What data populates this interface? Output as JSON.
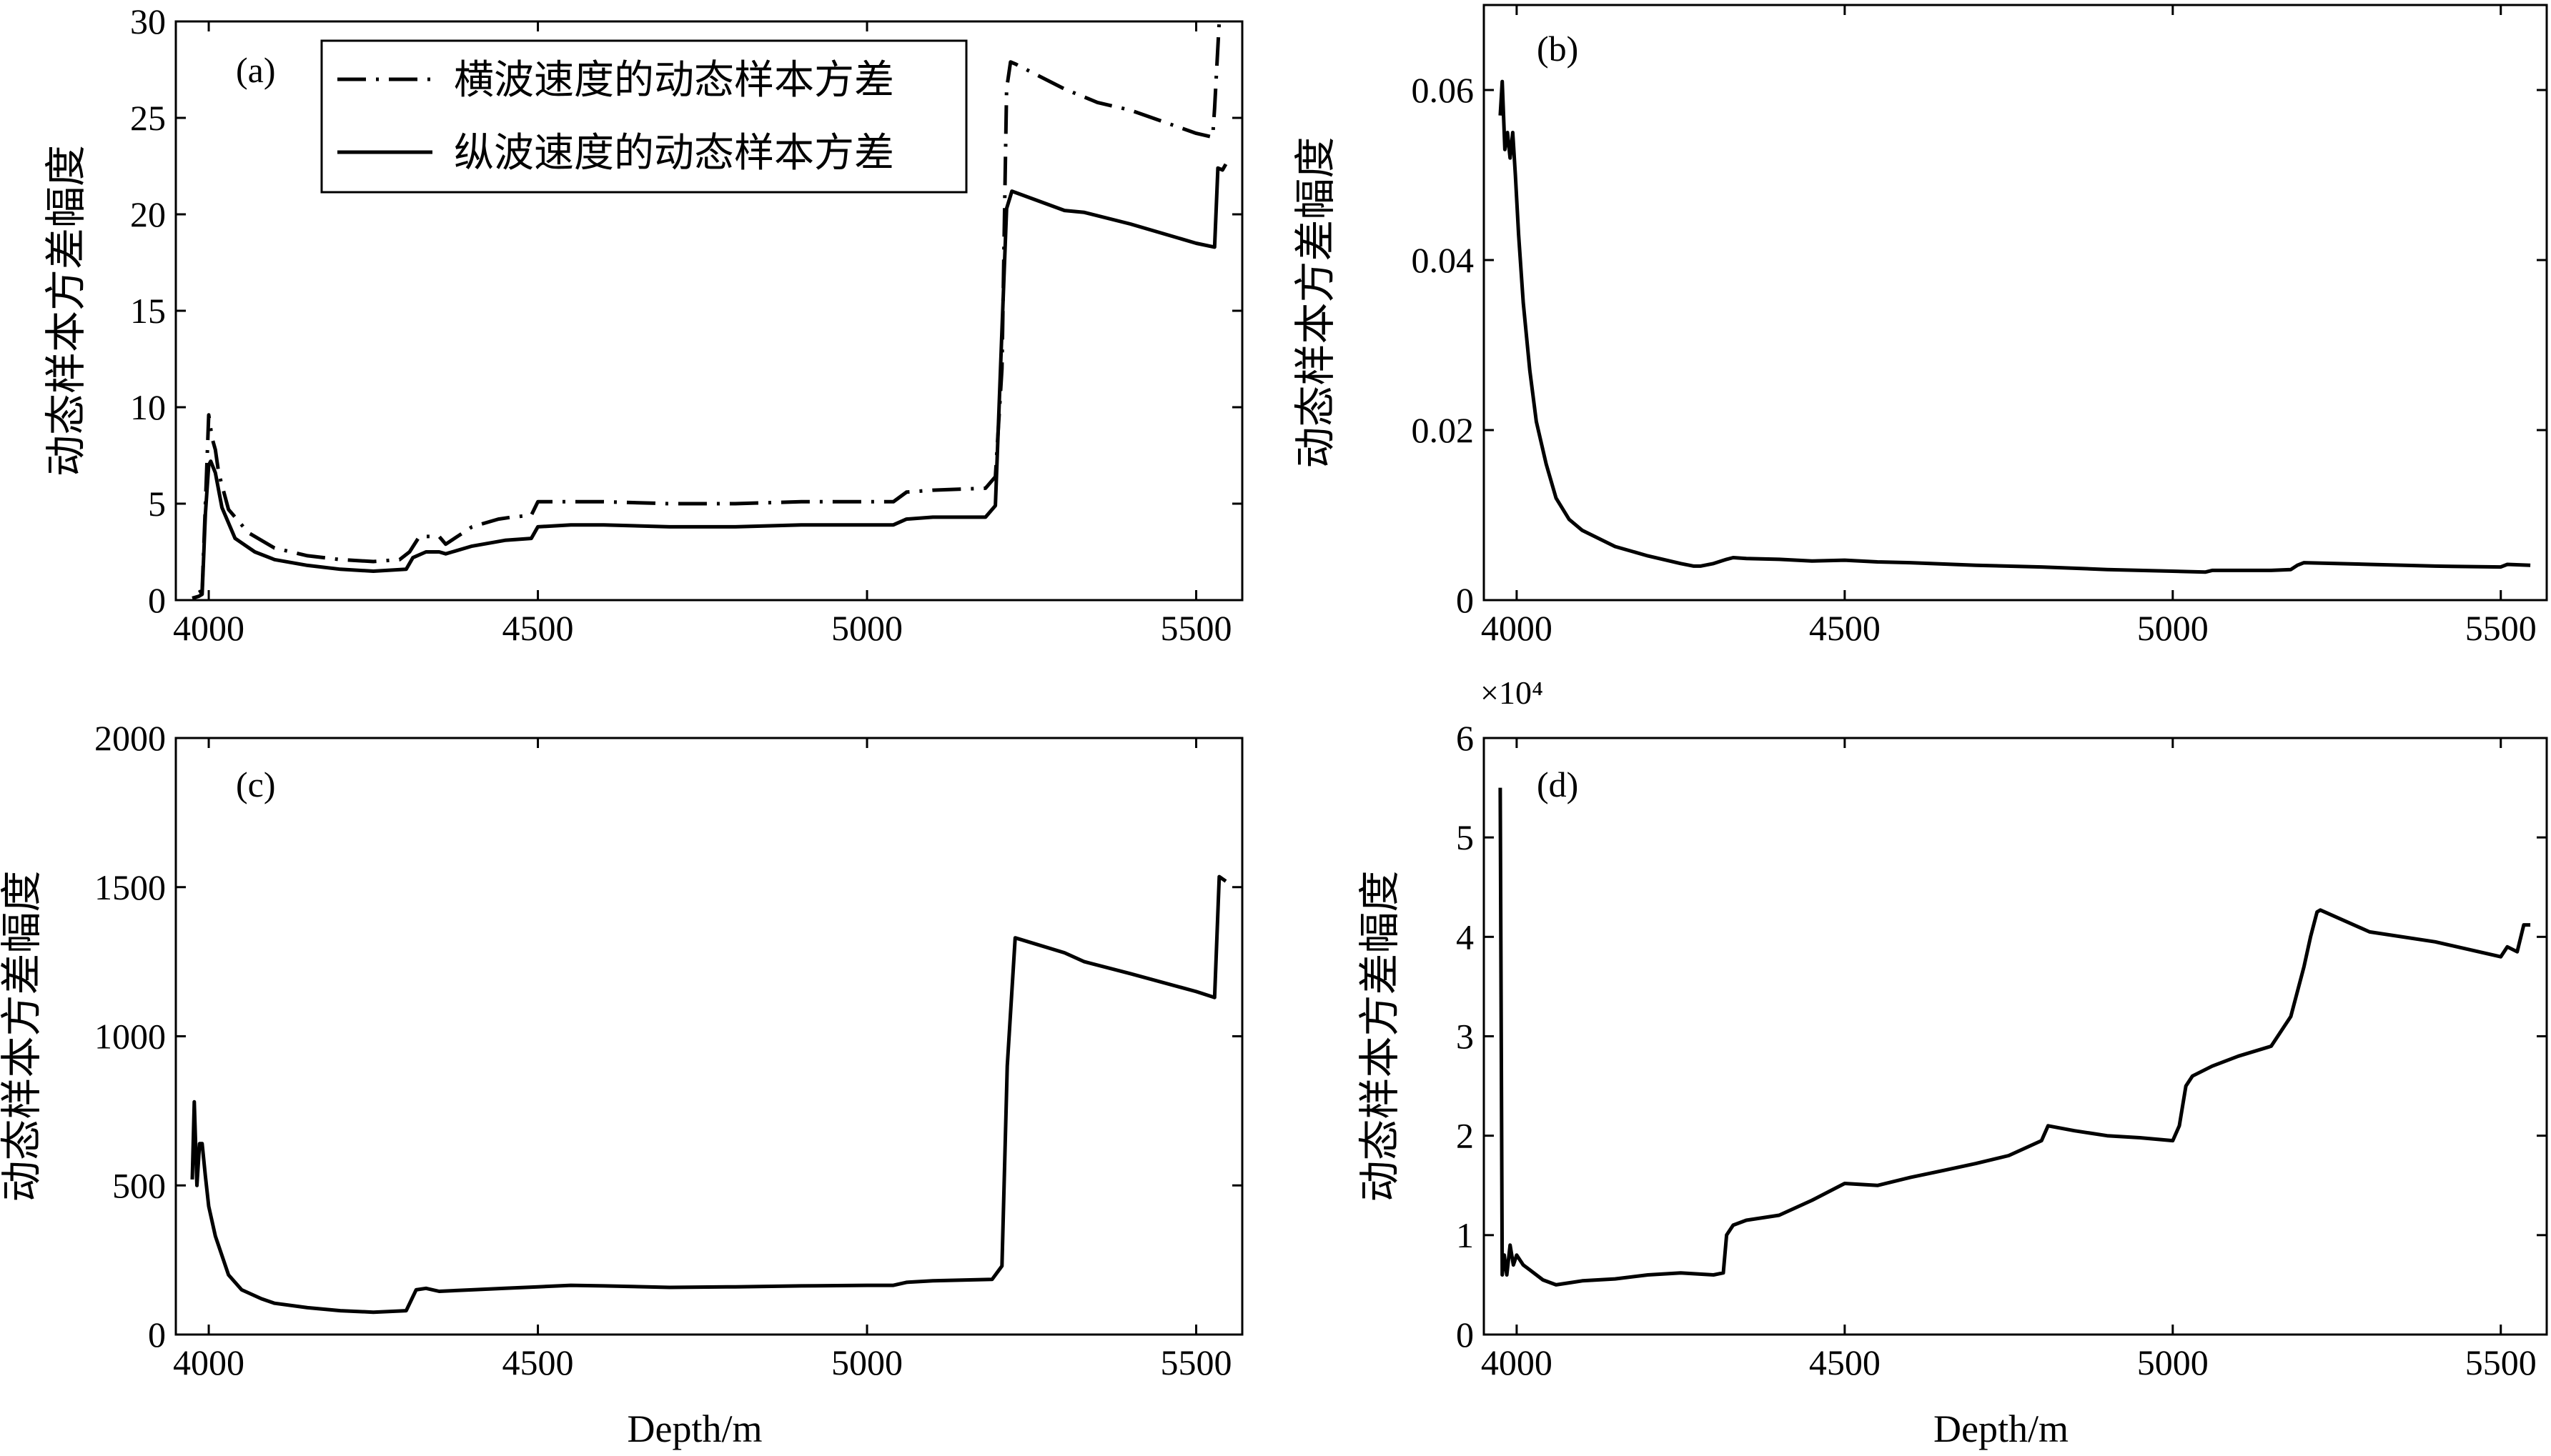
{
  "chart_data": [
    {
      "type": "line",
      "panel_label": "(a)",
      "ylabel": "动态样本方差幅度",
      "xlabel": "",
      "xlim": [
        3950,
        5570
      ],
      "ylim": [
        0,
        30
      ],
      "xticks": [
        4000,
        4500,
        5000,
        5500
      ],
      "yticks": [
        0,
        5,
        10,
        15,
        20,
        25,
        30
      ],
      "legend_position": "top-center",
      "series": [
        {
          "name": "横波速度的动态样本方差",
          "style": "dash-dot",
          "color": "#000000",
          "x": [
            3985,
            3990,
            3995,
            4000,
            4005,
            4010,
            4015,
            4030,
            4060,
            4100,
            4150,
            4200,
            4250,
            4290,
            4305,
            4320,
            4350,
            4360,
            4400,
            4440,
            4460,
            4490,
            4500,
            4550,
            4600,
            4700,
            4800,
            4900,
            5000,
            5040,
            5060,
            5100,
            5180,
            5195,
            5205,
            5212,
            5218,
            5225,
            5300,
            5350,
            5400,
            5450,
            5500,
            5525,
            5528,
            5535,
            5545
          ],
          "y": [
            0.4,
            0.5,
            5.0,
            9.6,
            8.4,
            7.8,
            6.6,
            4.7,
            3.5,
            2.7,
            2.3,
            2.1,
            2.0,
            2.1,
            2.5,
            3.3,
            3.3,
            2.9,
            3.8,
            4.2,
            4.3,
            4.4,
            5.1,
            5.1,
            5.1,
            5.0,
            5.0,
            5.1,
            5.1,
            5.1,
            5.6,
            5.7,
            5.8,
            6.4,
            12.0,
            26.5,
            27.9,
            27.8,
            26.5,
            25.8,
            25.4,
            24.8,
            24.2,
            24.0,
            25.5,
            30.0,
            30.0
          ]
        },
        {
          "name": "纵波速度的动态样本方差",
          "style": "solid",
          "color": "#000000",
          "x": [
            3975,
            3985,
            3990,
            3995,
            4000,
            4003,
            4010,
            4020,
            4040,
            4070,
            4100,
            4150,
            4200,
            4250,
            4300,
            4310,
            4330,
            4350,
            4360,
            4400,
            4450,
            4490,
            4500,
            4550,
            4600,
            4700,
            4800,
            4900,
            5000,
            5040,
            5060,
            5100,
            5180,
            5195,
            5205,
            5212,
            5220,
            5300,
            5330,
            5400,
            5450,
            5500,
            5528,
            5533,
            5540,
            5545
          ],
          "y": [
            0.1,
            0.2,
            0.3,
            4.5,
            7.0,
            7.2,
            6.6,
            4.8,
            3.2,
            2.5,
            2.1,
            1.8,
            1.6,
            1.5,
            1.6,
            2.2,
            2.5,
            2.5,
            2.4,
            2.8,
            3.1,
            3.2,
            3.8,
            3.9,
            3.9,
            3.8,
            3.8,
            3.9,
            3.9,
            3.9,
            4.2,
            4.3,
            4.3,
            4.9,
            14.0,
            20.3,
            21.2,
            20.2,
            20.1,
            19.5,
            19.0,
            18.5,
            18.3,
            22.4,
            22.3,
            22.6
          ]
        }
      ]
    },
    {
      "type": "line",
      "panel_label": "(b)",
      "ylabel": "动态样本方差幅度",
      "xlabel": "",
      "xlim": [
        3950,
        5570
      ],
      "ylim": [
        0,
        0.07
      ],
      "xticks": [
        4000,
        4500,
        5000,
        5500
      ],
      "yticks": [
        0,
        0.02,
        0.04,
        0.06
      ],
      "ytick_labels": [
        "0",
        "0.02",
        "0.04",
        "0.06"
      ],
      "series": [
        {
          "style": "solid",
          "color": "#000000",
          "x": [
            3975,
            3978,
            3982,
            3986,
            3990,
            3994,
            3998,
            4003,
            4010,
            4020,
            4030,
            4045,
            4060,
            4080,
            4100,
            4150,
            4200,
            4250,
            4270,
            4280,
            4300,
            4320,
            4330,
            4350,
            4400,
            4450,
            4500,
            4550,
            4600,
            4700,
            4800,
            4900,
            5000,
            5050,
            5060,
            5150,
            5180,
            5190,
            5200,
            5300,
            5400,
            5500,
            5510,
            5545
          ],
          "y": [
            0.057,
            0.061,
            0.053,
            0.055,
            0.052,
            0.055,
            0.05,
            0.043,
            0.035,
            0.027,
            0.021,
            0.016,
            0.012,
            0.0095,
            0.0082,
            0.0063,
            0.0052,
            0.0043,
            0.004,
            0.004,
            0.0043,
            0.0048,
            0.005,
            0.0049,
            0.0048,
            0.0046,
            0.0047,
            0.0045,
            0.0044,
            0.0041,
            0.0039,
            0.0036,
            0.0034,
            0.0033,
            0.0035,
            0.0035,
            0.0036,
            0.0041,
            0.0044,
            0.0042,
            0.004,
            0.0039,
            0.0042,
            0.0041
          ]
        }
      ]
    },
    {
      "type": "line",
      "panel_label": "(c)",
      "ylabel": "动态样本方差幅度",
      "xlabel": "Depth/m",
      "xlim": [
        3950,
        5570
      ],
      "ylim": [
        0,
        2000
      ],
      "xticks": [
        4000,
        4500,
        5000,
        5500
      ],
      "yticks": [
        0,
        500,
        1000,
        1500,
        2000
      ],
      "series": [
        {
          "style": "solid",
          "color": "#000000",
          "x": [
            3975,
            3978,
            3982,
            3986,
            3990,
            3995,
            4000,
            4010,
            4030,
            4050,
            4080,
            4100,
            4150,
            4200,
            4250,
            4300,
            4315,
            4330,
            4350,
            4400,
            4450,
            4500,
            4550,
            4600,
            4700,
            4800,
            4900,
            5000,
            5040,
            5060,
            5100,
            5190,
            5205,
            5213,
            5225,
            5300,
            5330,
            5400,
            5500,
            5528,
            5535,
            5545
          ],
          "y": [
            520,
            780,
            500,
            640,
            640,
            530,
            430,
            330,
            200,
            150,
            120,
            105,
            90,
            80,
            75,
            80,
            150,
            155,
            145,
            150,
            155,
            160,
            165,
            163,
            158,
            160,
            163,
            165,
            165,
            175,
            180,
            185,
            230,
            900,
            1330,
            1280,
            1250,
            1210,
            1150,
            1130,
            1535,
            1520
          ]
        }
      ]
    },
    {
      "type": "line",
      "panel_label": "(d)",
      "ylabel": "动态样本方差幅度",
      "xlabel": "Depth/m",
      "xlim": [
        3950,
        5570
      ],
      "ylim": [
        0,
        6
      ],
      "y_exponent_label": "×10⁴",
      "xticks": [
        4000,
        4500,
        5000,
        5500
      ],
      "yticks": [
        0,
        1,
        2,
        3,
        4,
        5,
        6
      ],
      "series": [
        {
          "style": "solid",
          "color": "#000000",
          "x": [
            3975,
            3978,
            3981,
            3985,
            3990,
            3995,
            4000,
            4010,
            4020,
            4040,
            4060,
            4080,
            4100,
            4150,
            4200,
            4250,
            4300,
            4315,
            4320,
            4330,
            4350,
            4400,
            4450,
            4500,
            4550,
            4600,
            4650,
            4700,
            4750,
            4800,
            4810,
            4850,
            4900,
            4950,
            5000,
            5010,
            5020,
            5030,
            5060,
            5100,
            5150,
            5180,
            5200,
            5210,
            5220,
            5225,
            5300,
            5400,
            5500,
            5510,
            5525,
            5535,
            5545
          ],
          "y": [
            5.5,
            0.6,
            0.8,
            0.6,
            0.9,
            0.7,
            0.8,
            0.7,
            0.65,
            0.55,
            0.5,
            0.52,
            0.54,
            0.56,
            0.6,
            0.62,
            0.6,
            0.62,
            1.0,
            1.1,
            1.15,
            1.2,
            1.35,
            1.52,
            1.5,
            1.58,
            1.65,
            1.72,
            1.8,
            1.95,
            2.1,
            2.05,
            2.0,
            1.98,
            1.95,
            2.1,
            2.5,
            2.6,
            2.7,
            2.8,
            2.9,
            3.2,
            3.7,
            4.0,
            4.25,
            4.27,
            4.05,
            3.95,
            3.8,
            3.9,
            3.85,
            4.12,
            4.12
          ]
        }
      ]
    }
  ]
}
